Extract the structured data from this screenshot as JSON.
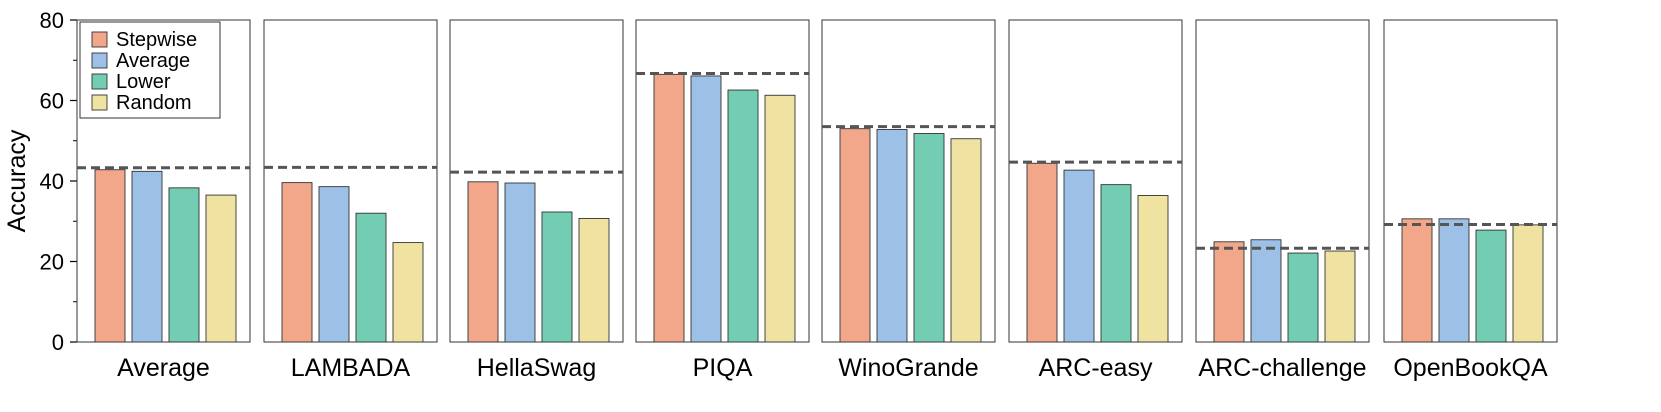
{
  "chart_data": {
    "type": "bar",
    "ylabel": "Accuracy",
    "ylim": [
      0,
      80
    ],
    "yticks": [
      0,
      20,
      40,
      60,
      80
    ],
    "legend_position": "top-left",
    "series": [
      {
        "name": "Stepwise",
        "color": "#F2A68A"
      },
      {
        "name": "Average",
        "color": "#9DC0E6"
      },
      {
        "name": "Lower",
        "color": "#72CDB2"
      },
      {
        "name": "Random",
        "color": "#F0E3A2"
      }
    ],
    "panels": [
      {
        "category": "Average",
        "values": [
          42.8,
          42.4,
          38.3,
          36.5
        ],
        "reference": 43.3
      },
      {
        "category": "LAMBADA",
        "values": [
          39.6,
          38.6,
          32.0,
          24.7
        ],
        "reference": 43.4
      },
      {
        "category": "HellaSwag",
        "values": [
          39.8,
          39.5,
          32.3,
          30.7
        ],
        "reference": 42.2
      },
      {
        "category": "PIQA",
        "values": [
          66.5,
          66.1,
          62.6,
          61.3
        ],
        "reference": 66.7
      },
      {
        "category": "WinoGrande",
        "values": [
          53.0,
          52.8,
          51.8,
          50.5
        ],
        "reference": 53.5
      },
      {
        "category": "ARC-easy",
        "values": [
          44.4,
          42.7,
          39.1,
          36.4
        ],
        "reference": 44.7
      },
      {
        "category": "ARC-challenge",
        "values": [
          24.9,
          25.4,
          22.1,
          22.6
        ],
        "reference": 23.3
      },
      {
        "category": "OpenBookQA",
        "values": [
          30.6,
          30.6,
          27.8,
          29.1
        ],
        "reference": 29.2
      }
    ]
  }
}
